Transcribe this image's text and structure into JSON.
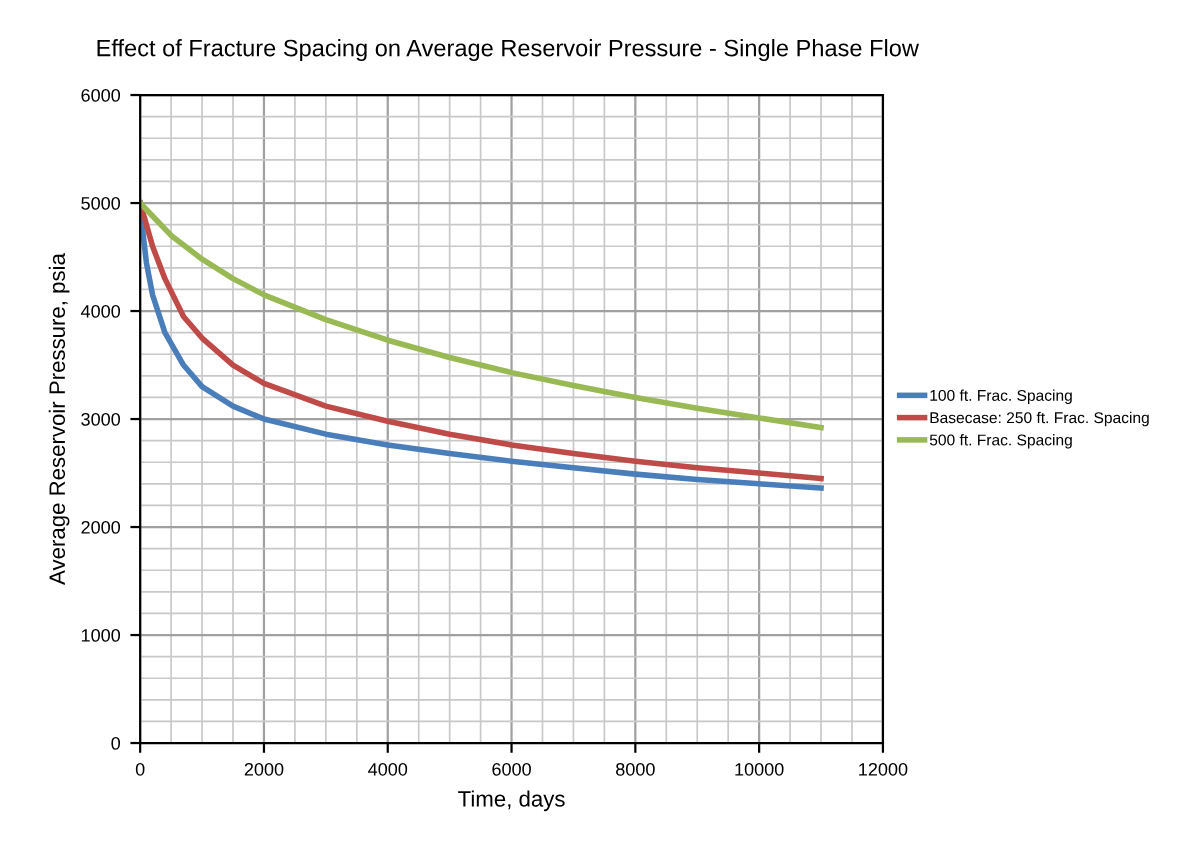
{
  "chart_data": {
    "type": "line",
    "title": "Effect of Fracture Spacing on Average Reservoir Pressure - Single Phase Flow",
    "xlabel": "Time, days",
    "ylabel": "Average Reservoir Pressure, psia",
    "xlim": [
      0,
      12000
    ],
    "xticks": [
      0,
      2000,
      4000,
      6000,
      8000,
      10000,
      12000
    ],
    "ylim": [
      0,
      6000
    ],
    "yticks": [
      0,
      1000,
      2000,
      3000,
      4000,
      5000,
      6000
    ],
    "grid": true,
    "legend": "right",
    "marker": "none",
    "line_style": "solid",
    "series": [
      {
        "name": "100 ft. Frac. Spacing",
        "color": "#4a7ebb",
        "x": [
          0,
          50,
          100,
          200,
          400,
          700,
          1000,
          1500,
          2000,
          3000,
          4000,
          5000,
          6000,
          7000,
          8000,
          9000,
          10000,
          11000
        ],
        "values": [
          5000,
          4700,
          4450,
          4150,
          3800,
          3500,
          3300,
          3120,
          3000,
          2860,
          2760,
          2680,
          2610,
          2550,
          2490,
          2440,
          2400,
          2360
        ]
      },
      {
        "name": "Basecase: 250 ft. Frac. Spacing",
        "color": "#be4b48",
        "x": [
          0,
          100,
          200,
          400,
          700,
          1000,
          1500,
          2000,
          3000,
          4000,
          5000,
          6000,
          7000,
          8000,
          9000,
          10000,
          11000
        ],
        "values": [
          5000,
          4800,
          4600,
          4300,
          3950,
          3750,
          3500,
          3330,
          3120,
          2980,
          2860,
          2760,
          2680,
          2610,
          2550,
          2500,
          2450
        ]
      },
      {
        "name": "500 ft. Frac. Spacing",
        "color": "#98b954",
        "x": [
          0,
          250,
          500,
          1000,
          1500,
          2000,
          3000,
          4000,
          5000,
          6000,
          7000,
          8000,
          9000,
          10000,
          11000
        ],
        "values": [
          5000,
          4850,
          4700,
          4480,
          4300,
          4150,
          3920,
          3730,
          3570,
          3430,
          3310,
          3200,
          3100,
          3010,
          2920
        ]
      }
    ]
  }
}
